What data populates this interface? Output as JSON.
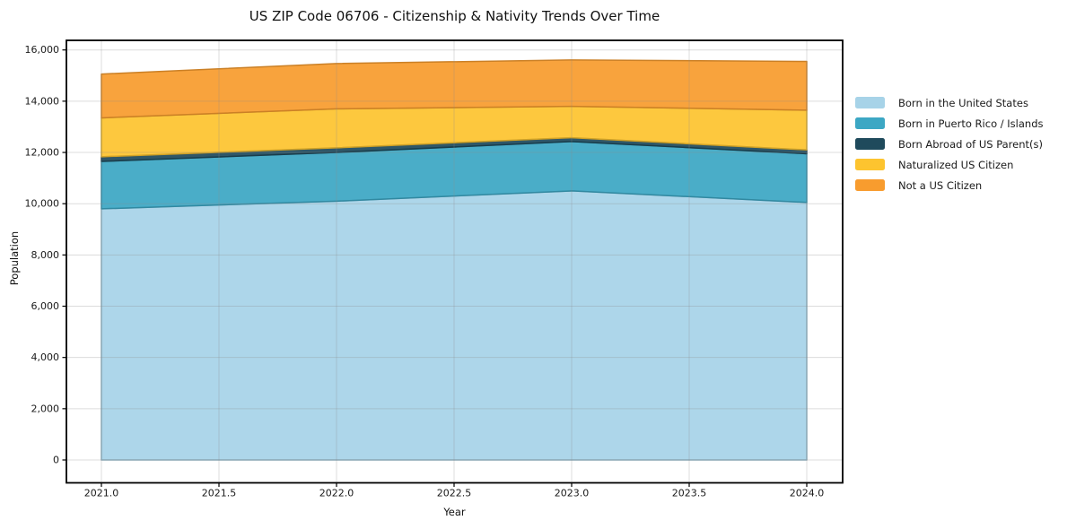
{
  "title": "US ZIP Code 06706 - Citizenship & Nativity Trends Over Time",
  "chart_data": {
    "type": "area",
    "stacked": true,
    "title": "US ZIP Code 06706 - Citizenship & Nativity Trends Over Time",
    "xlabel": "Year",
    "ylabel": "Population",
    "x": [
      2021,
      2022,
      2023,
      2024
    ],
    "series": [
      {
        "name": "Born in the United States",
        "color": "#A7D3E8",
        "values": [
          9800,
          10100,
          10500,
          10050
        ]
      },
      {
        "name": "Born in Puerto Rico / Islands",
        "color": "#3CA7C4",
        "values": [
          1850,
          1900,
          1925,
          1900
        ]
      },
      {
        "name": "Born Abroad of US Parent(s)",
        "color": "#1F4A5C",
        "values": [
          180,
          180,
          150,
          150
        ]
      },
      {
        "name": "Naturalized US Citizen",
        "color": "#FDC42F",
        "values": [
          1520,
          1520,
          1225,
          1550
        ]
      },
      {
        "name": "Not a US Citizen",
        "color": "#F89C2E",
        "values": [
          1710,
          1770,
          1810,
          1900
        ]
      }
    ],
    "x_tick_values": [
      2021.0,
      2021.5,
      2022.0,
      2022.5,
      2023.0,
      2023.5,
      2024.0
    ],
    "x_tick_labels": [
      "2021.0",
      "2021.5",
      "2022.0",
      "2022.5",
      "2023.0",
      "2023.5",
      "2024.0"
    ],
    "y_tick_values": [
      0,
      2000,
      4000,
      6000,
      8000,
      10000,
      12000,
      14000,
      16000
    ],
    "y_tick_labels": [
      "0",
      "2,000",
      "4,000",
      "6,000",
      "8,000",
      "10,000",
      "12,000",
      "14,000",
      "16,000"
    ],
    "ylim": [
      0,
      16000
    ],
    "xlim": [
      2020.85,
      2024.15
    ],
    "grid": true,
    "legend_position": "right",
    "colors": {
      "background": "#ffffff",
      "frame": "#000000",
      "gridline": "#d9d9d9",
      "tick_text": "#1a1a1a"
    }
  }
}
